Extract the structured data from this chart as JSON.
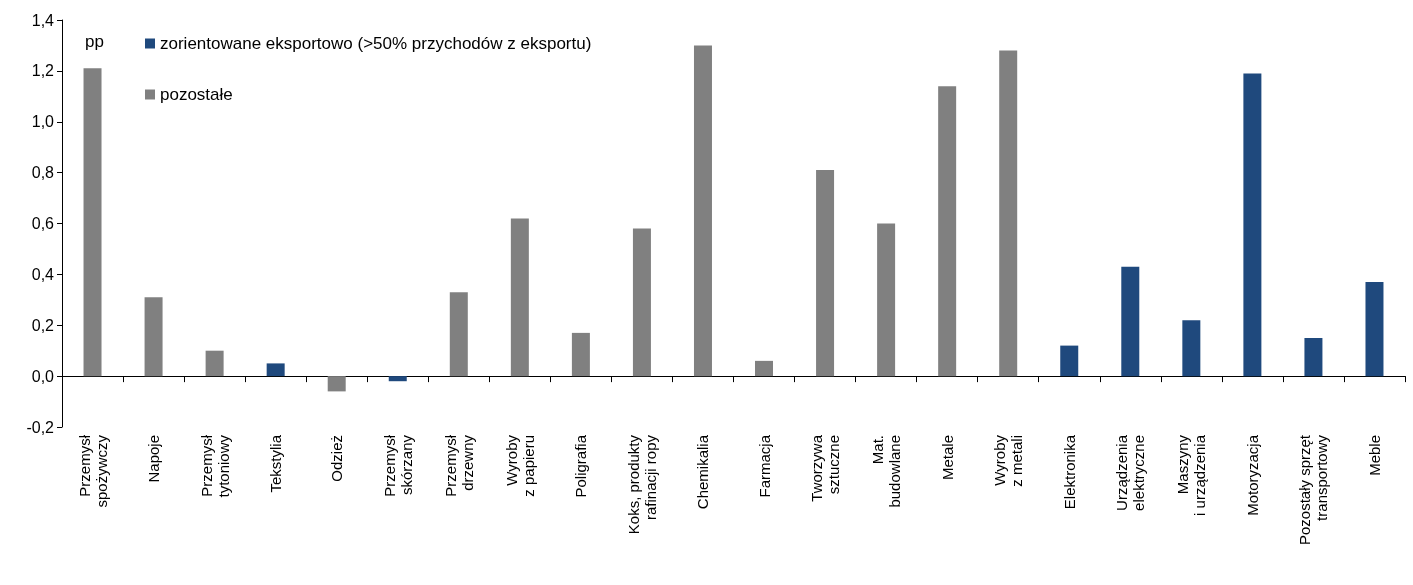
{
  "chart_data": {
    "type": "bar",
    "ylabel": "pp",
    "categories": [
      "Przemysł\nspożywczy",
      "Napoje",
      "Przemysł\ntytoniowy",
      "Tekstylia",
      "Odzież",
      "Przemysł\nskórzany",
      "Przemysł\ndrzewny",
      "Wyroby\nz papieru",
      "Poligrafia",
      "Koks, produkty\nrafinacji ropy",
      "Chemikalia",
      "Farmacja",
      "Tworzywa\nsztuczne",
      "Mat.\nbudowlane",
      "Metale",
      "Wyroby\nz metali",
      "Elektronika",
      "Urządzenia\nelektryczne",
      "Maszyny\ni urządzenia",
      "Motoryzacja",
      "Pozostały sprzęt\ntransportowy",
      "Meble"
    ],
    "series": [
      {
        "name": "zorientowane eksportowo (>50% przychodów z eksportu)",
        "color": "#1f497d",
        "values": [
          null,
          null,
          null,
          0.05,
          null,
          -0.02,
          null,
          null,
          null,
          null,
          null,
          null,
          null,
          null,
          null,
          null,
          0.12,
          0.43,
          0.22,
          1.19,
          0.15,
          0.37
        ]
      },
      {
        "name": "pozostałe",
        "color": "#808080",
        "values": [
          1.21,
          0.31,
          0.1,
          null,
          -0.06,
          null,
          0.33,
          0.62,
          0.17,
          0.58,
          1.3,
          0.06,
          0.81,
          0.6,
          1.14,
          1.28,
          null,
          null,
          null,
          null,
          null,
          null
        ]
      }
    ],
    "ylim": [
      -0.2,
      1.4
    ],
    "yticks": [
      {
        "value": -0.2,
        "label": "-0,2"
      },
      {
        "value": 0,
        "label": "0,0"
      },
      {
        "value": 0.2,
        "label": "0,2"
      },
      {
        "value": 0.4,
        "label": "0,4"
      },
      {
        "value": 0.6,
        "label": "0,6"
      },
      {
        "value": 0.8,
        "label": "0,8"
      },
      {
        "value": 1.0,
        "label": "1,0"
      },
      {
        "value": 1.2,
        "label": "1,2"
      },
      {
        "value": 1.4,
        "label": "1,4"
      }
    ],
    "legend": "top left"
  }
}
